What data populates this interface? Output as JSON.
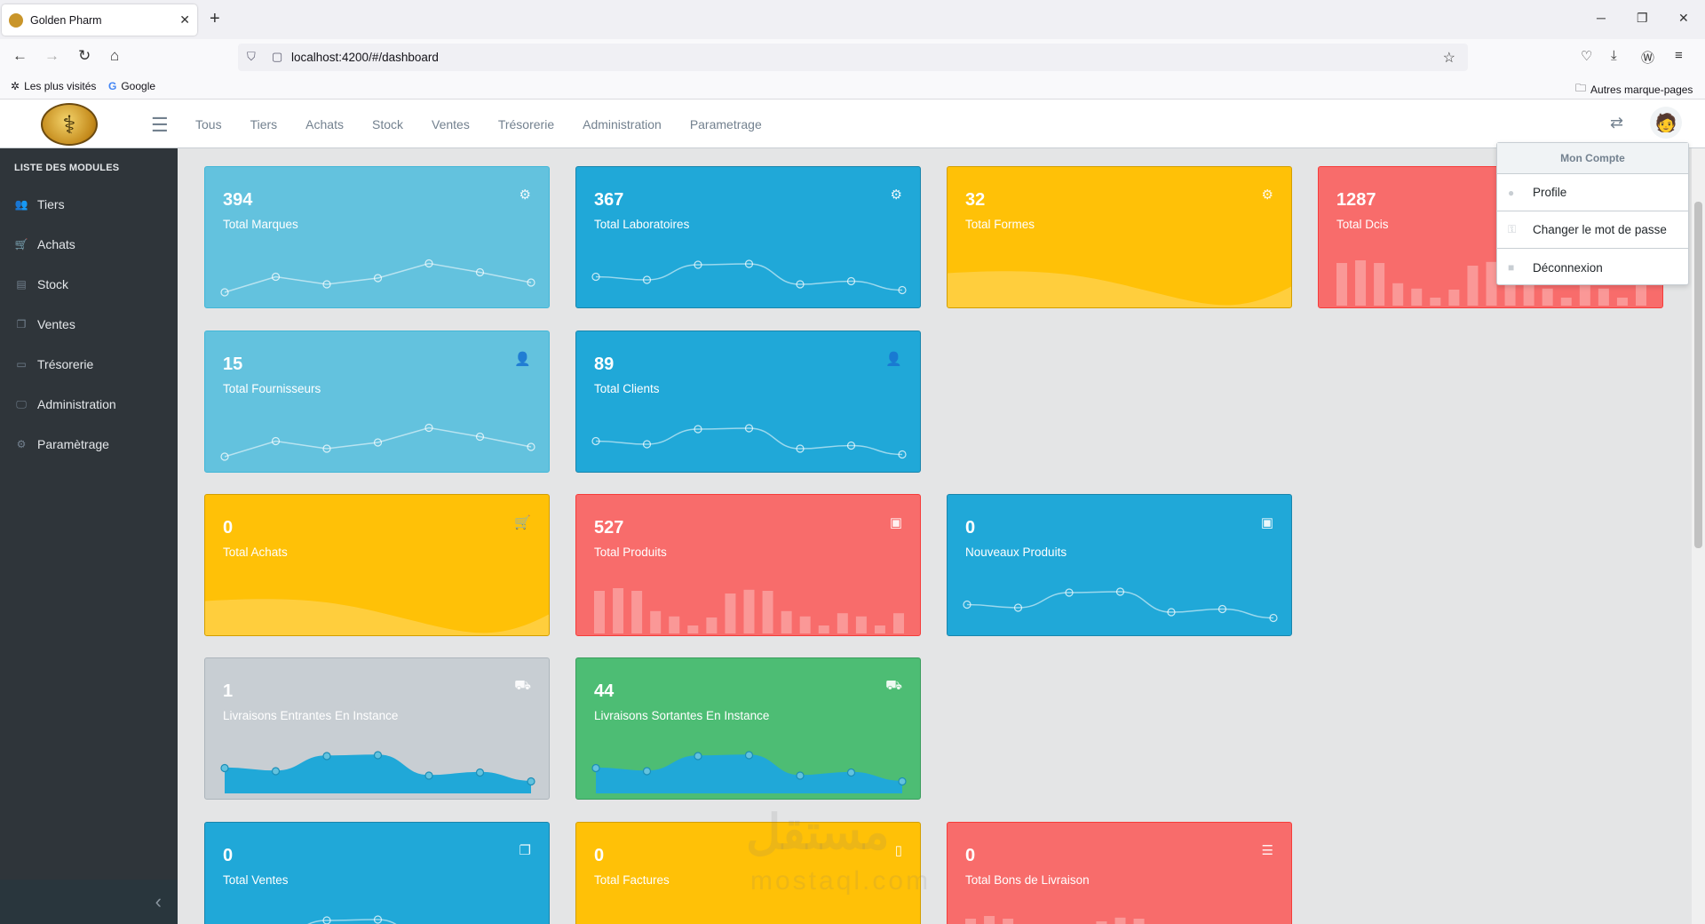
{
  "browser": {
    "tab_title": "Golden Pharm",
    "url": "localhost:4200/#/dashboard",
    "bookmarks": [
      "Les plus visités",
      "Google"
    ],
    "other_bookmarks": "Autres marque-pages"
  },
  "header": {
    "nav": [
      "Tous",
      "Tiers",
      "Achats",
      "Stock",
      "Ventes",
      "Trésorerie",
      "Administration",
      "Parametrage"
    ]
  },
  "sidebar": {
    "title": "LISTE DES MODULES",
    "items": [
      {
        "label": "Tiers",
        "icon": "users-icon"
      },
      {
        "label": "Achats",
        "icon": "cart-icon"
      },
      {
        "label": "Stock",
        "icon": "stock-icon"
      },
      {
        "label": "Ventes",
        "icon": "sales-icon"
      },
      {
        "label": "Trésorerie",
        "icon": "money-icon"
      },
      {
        "label": "Administration",
        "icon": "monitor-icon"
      },
      {
        "label": "Paramètrage",
        "icon": "gear-icon"
      }
    ]
  },
  "dropdown": {
    "header": "Mon Compte",
    "items": [
      "Profile",
      "Changer le mot de passe",
      "Déconnexion"
    ]
  },
  "cards": [
    {
      "value": "394",
      "label": "Total Marques",
      "color": "#63c2de",
      "chart": "line"
    },
    {
      "value": "367",
      "label": "Total Laboratoires",
      "color": "#20a8d8",
      "chart": "line-smooth"
    },
    {
      "value": "32",
      "label": "Total Formes",
      "color": "#ffc107",
      "chart": "area"
    },
    {
      "value": "1287",
      "label": "Total Dcis",
      "color": "#f86c6b",
      "chart": "bar"
    },
    {
      "value": "15",
      "label": "Total Fournisseurs",
      "color": "#63c2de",
      "chart": "line"
    },
    {
      "value": "89",
      "label": "Total Clients",
      "color": "#20a8d8",
      "chart": "line-smooth"
    },
    {
      "value": "0",
      "label": "Total Achats",
      "color": "#ffc107",
      "chart": "area"
    },
    {
      "value": "527",
      "label": "Total Produits",
      "color": "#f86c6b",
      "chart": "bar"
    },
    {
      "value": "0",
      "label": "Nouveaux Produits",
      "color": "#20a8d8",
      "chart": "line-smooth"
    },
    {
      "value": "1",
      "label": "Livraisons Entrantes En Instance",
      "color": "#c8ced3",
      "chart": "filled"
    },
    {
      "value": "44",
      "label": "Livraisons Sortantes En Instance",
      "color": "#4dbd74",
      "chart": "filled"
    },
    {
      "value": "0",
      "label": "Total Ventes",
      "color": "#20a8d8",
      "chart": "line-smooth"
    },
    {
      "value": "0",
      "label": "Total Factures",
      "color": "#ffc107",
      "chart": "area"
    },
    {
      "value": "0",
      "label": "Total Bons de Livraison",
      "color": "#f86c6b",
      "chart": "bar"
    }
  ],
  "watermark": {
    "arabic": "مستقل",
    "latin": "mostaql.com"
  }
}
